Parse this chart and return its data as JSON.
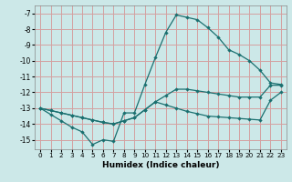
{
  "xlabel": "Humidex (Indice chaleur)",
  "bg_color": "#cce8e8",
  "grid_color": "#d4a0a0",
  "line_color": "#1a7070",
  "xlim": [
    -0.5,
    23.5
  ],
  "ylim": [
    -15.6,
    -6.5
  ],
  "yticks": [
    -7,
    -8,
    -9,
    -10,
    -11,
    -12,
    -13,
    -14,
    -15
  ],
  "xticks": [
    0,
    1,
    2,
    3,
    4,
    5,
    6,
    7,
    8,
    9,
    10,
    11,
    12,
    13,
    14,
    15,
    16,
    17,
    18,
    19,
    20,
    21,
    22,
    23
  ],
  "line1_x": [
    0,
    1,
    2,
    3,
    4,
    5,
    6,
    7,
    8,
    9,
    10,
    11,
    12,
    13,
    14,
    15,
    16,
    17,
    18,
    19,
    20,
    21,
    22,
    23
  ],
  "line1_y": [
    -13.0,
    -13.4,
    -13.8,
    -14.2,
    -14.5,
    -15.3,
    -15.0,
    -15.1,
    -13.3,
    -13.3,
    -11.5,
    -9.8,
    -8.2,
    -7.1,
    -7.25,
    -7.4,
    -7.9,
    -8.5,
    -9.3,
    -9.6,
    -10.0,
    -10.6,
    -11.4,
    -11.5
  ],
  "line2_x": [
    0,
    1,
    2,
    3,
    4,
    5,
    6,
    7,
    8,
    9,
    10,
    11,
    12,
    13,
    14,
    15,
    16,
    17,
    18,
    19,
    20,
    21,
    22,
    23
  ],
  "line2_y": [
    -13.0,
    -13.15,
    -13.3,
    -13.45,
    -13.6,
    -13.75,
    -13.9,
    -14.0,
    -13.8,
    -13.6,
    -13.1,
    -12.6,
    -12.2,
    -11.8,
    -11.8,
    -11.9,
    -12.0,
    -12.1,
    -12.2,
    -12.3,
    -12.3,
    -12.3,
    -11.55,
    -11.55
  ],
  "line3_x": [
    0,
    1,
    2,
    3,
    4,
    5,
    6,
    7,
    8,
    9,
    10,
    11,
    12,
    13,
    14,
    15,
    16,
    17,
    18,
    19,
    20,
    21,
    22,
    23
  ],
  "line3_y": [
    -13.0,
    -13.15,
    -13.3,
    -13.45,
    -13.6,
    -13.75,
    -13.9,
    -14.0,
    -13.8,
    -13.6,
    -13.1,
    -12.6,
    -12.8,
    -13.0,
    -13.2,
    -13.35,
    -13.5,
    -13.55,
    -13.6,
    -13.65,
    -13.7,
    -13.75,
    -12.5,
    -12.0
  ]
}
